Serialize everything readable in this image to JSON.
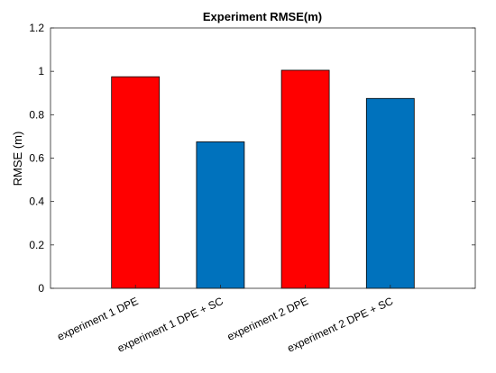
{
  "chart_data": {
    "type": "bar",
    "title": "Experiment RMSE(m)",
    "xlabel": "",
    "ylabel": "RMSE (m)",
    "ylim": [
      0,
      1.2
    ],
    "yticks": [
      "0",
      "0.2",
      "0.4",
      "0.6",
      "0.8",
      "1",
      "1.2"
    ],
    "grid": false,
    "categories": [
      "experiment 1 DPE",
      "experiment 1 DPE + SC",
      "experiment 2 DPE",
      "experiment 2 DPE + SC"
    ],
    "values": [
      0.975,
      0.675,
      1.005,
      0.875
    ],
    "bar_colors": [
      "#ff0000",
      "#0072bd",
      "#ff0000",
      "#0072bd"
    ]
  }
}
